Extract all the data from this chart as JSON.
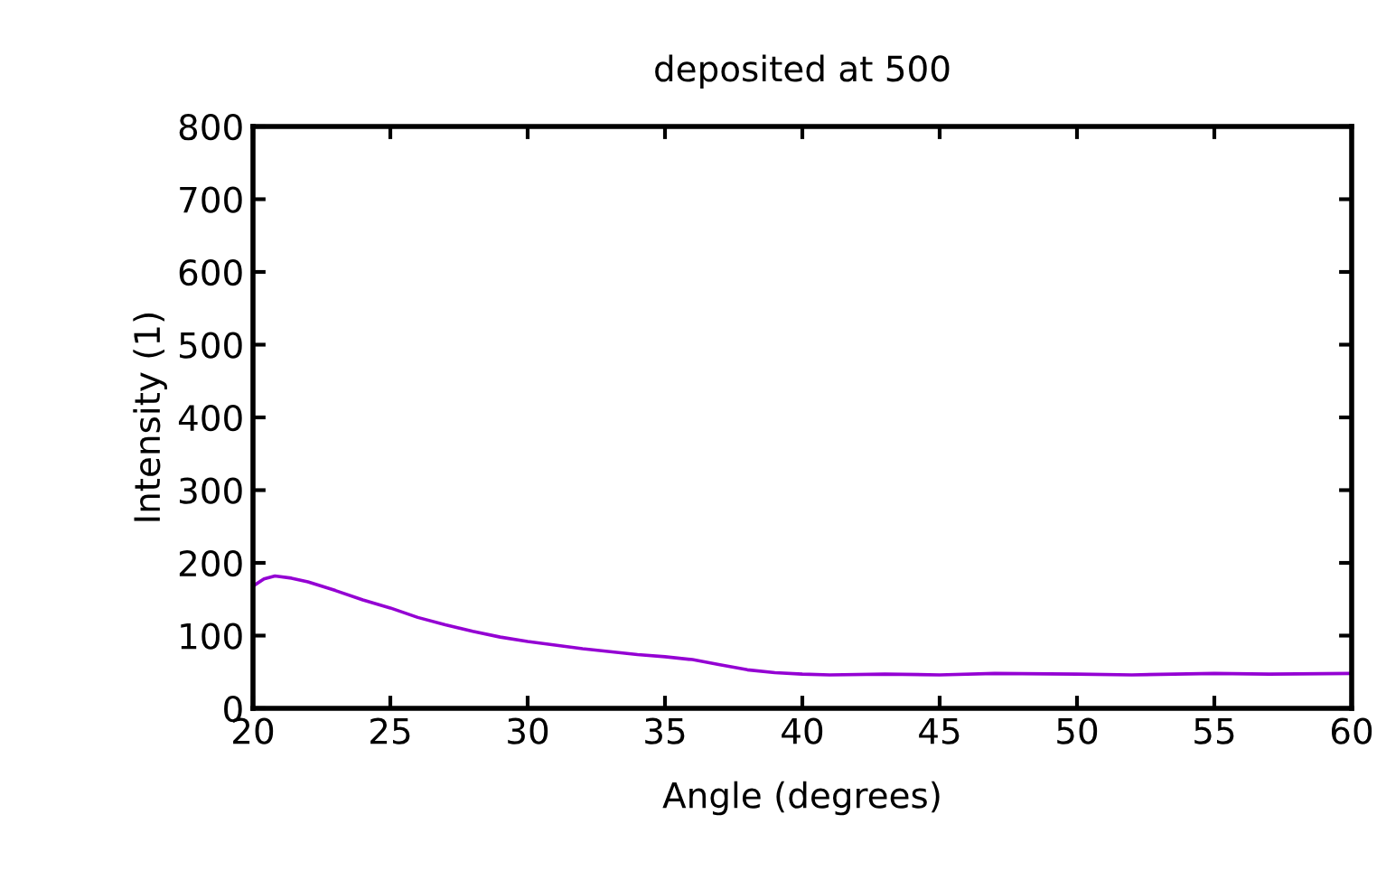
{
  "chart_data": {
    "type": "line",
    "title": "deposited at 500",
    "xlabel": "Angle (degrees)",
    "ylabel": "Intensity (1)",
    "xlim": [
      20,
      60
    ],
    "xticks": [
      20,
      25,
      30,
      35,
      40,
      45,
      50,
      55,
      60
    ],
    "ylim": [
      0,
      800
    ],
    "yticks": [
      0,
      100,
      200,
      300,
      400,
      500,
      600,
      700,
      800
    ],
    "grid": false,
    "legend": false,
    "series": [
      {
        "color": "#9400d3",
        "x": [
          20,
          20.4,
          20.8,
          21.4,
          22,
          23,
          24,
          25,
          26,
          27,
          28,
          29,
          30,
          31,
          32,
          33,
          34,
          35,
          36,
          37,
          38,
          39,
          40,
          41,
          43,
          45,
          47,
          50,
          52,
          55,
          57,
          60
        ],
        "values": [
          168,
          178,
          182,
          179,
          174,
          162,
          149,
          138,
          125,
          115,
          106,
          98,
          92,
          87,
          82,
          78,
          74,
          71,
          67,
          60,
          53,
          49,
          47,
          46,
          47,
          46,
          48,
          47,
          46,
          48,
          47,
          48
        ]
      }
    ]
  }
}
